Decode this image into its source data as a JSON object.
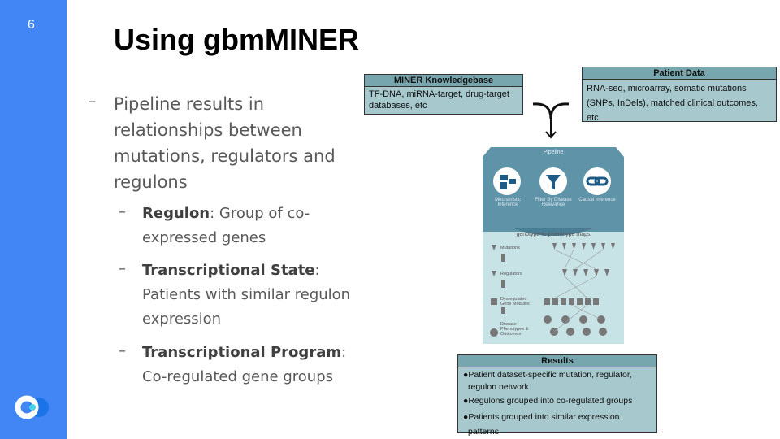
{
  "slide": {
    "page_number": "6",
    "title": "Using gbmMINER"
  },
  "bullets": {
    "main": "Pipeline results in relationships between mutations, regulators and regulons",
    "dash": "–",
    "sub": [
      {
        "term": "Regulon",
        "rest": ": Group of co-expressed genes"
      },
      {
        "term": "Transcriptional State",
        "rest": ": Patients with similar regulon expression"
      },
      {
        "term": "Transcriptional Program",
        "rest": ": Co-regulated gene groups"
      }
    ]
  },
  "knowledgebase": {
    "header": "MINER Knowledgebase",
    "body": "TF-DNA, miRNA-target, drug-target databases, etc"
  },
  "patient_data": {
    "header": "Patient Data",
    "body": "RNA-seq, microarray, somatic mutations (SNPs, InDels), matched clinical outcomes, etc"
  },
  "results": {
    "header": "Results",
    "items": [
      "●Patient dataset-specific mutation, regulator, regulon network",
      "●Regulons grouped into co-regulated groups",
      "●Patients grouped into similar expression patterns"
    ]
  },
  "pipeline": {
    "title": "Pipeline",
    "steps": [
      "Mechanistic Inference",
      "Filter By Disease Relevance",
      "Causal Inference"
    ],
    "map_title": "genotype-to-phenotype maps",
    "levels": [
      "Mutations",
      "Regulators",
      "Dysregulated Gene Modules",
      "Disease Phenotypes & Outcomes"
    ]
  },
  "colors": {
    "sidebar": "#4285f4",
    "box_header": "#77a6af",
    "box_body": "#a7c8cd",
    "pipeline_top": "#5f93a8",
    "pipeline_bottom": "#c8e3e6"
  }
}
